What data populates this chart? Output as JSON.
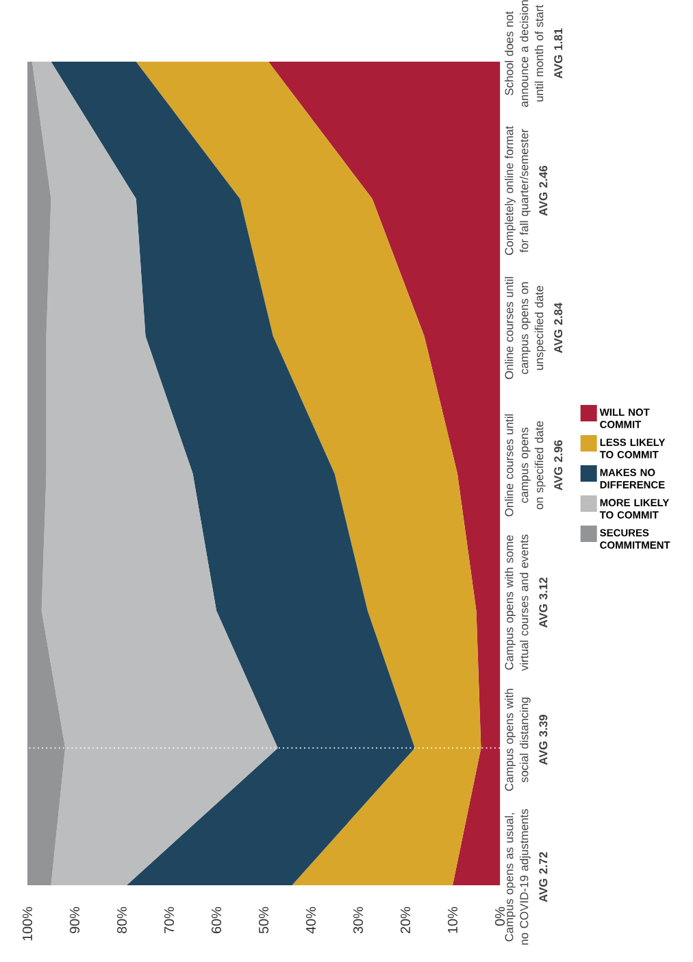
{
  "chart_data": {
    "type": "area",
    "stacked": true,
    "orientation": "horizontal",
    "categories": [
      "School does not announce a decision until month of start",
      "Completely online format for fall quarter/semester",
      "Online courses until campus opens on unspecified date",
      "Online courses until campus opens on specified date",
      "Campus opens with some virtual courses and events",
      "Campus opens with social distancing",
      "Campus opens as usual, no COVID-19 adjustments"
    ],
    "annotations": [
      "AVG 1.81",
      "AVG 2.46",
      "AVG 2.84",
      "AVG 2.96",
      "AVG 3.12",
      "AVG 3.39",
      "AVG 2.72"
    ],
    "series": [
      {
        "name": "WILL NOT COMMIT",
        "color": "#ab1e38",
        "values": [
          49,
          27,
          16,
          9,
          5,
          4,
          10
        ]
      },
      {
        "name": "LESS LIKELY TO COMMIT",
        "color": "#d8a62a",
        "values": [
          28,
          28,
          32,
          26,
          23,
          14,
          34
        ]
      },
      {
        "name": "MAKES NO DIFFERENCE",
        "color": "#20465f",
        "values": [
          18,
          22,
          27,
          30,
          32,
          29,
          35
        ]
      },
      {
        "name": "MORE LIKELY TO COMMIT",
        "color": "#bcbdbf",
        "values": [
          4,
          18,
          21,
          31,
          37,
          45,
          16
        ]
      },
      {
        "name": "SECURES COMMITMENT",
        "color": "#939496",
        "values": [
          1,
          5,
          4,
          4,
          3,
          8,
          5
        ]
      }
    ],
    "xlim": [
      100,
      0
    ],
    "xticks": [
      {
        "value": 0,
        "label": "0%"
      },
      {
        "value": 10,
        "label": "10%"
      },
      {
        "value": 20,
        "label": "20%"
      },
      {
        "value": 30,
        "label": "30%"
      },
      {
        "value": 40,
        "label": "40%"
      },
      {
        "value": 50,
        "label": "50%"
      },
      {
        "value": 60,
        "label": "60%"
      },
      {
        "value": 70,
        "label": "70%"
      },
      {
        "value": 80,
        "label": "80%"
      },
      {
        "value": 90,
        "label": "90%"
      },
      {
        "value": 100,
        "label": "100%"
      }
    ],
    "ref_lines": [
      {
        "axis": "y",
        "value": "Campus opens with social distancing",
        "color": "#ffffff",
        "line_style": "dotted"
      }
    ],
    "legend": "right",
    "grid": false
  }
}
